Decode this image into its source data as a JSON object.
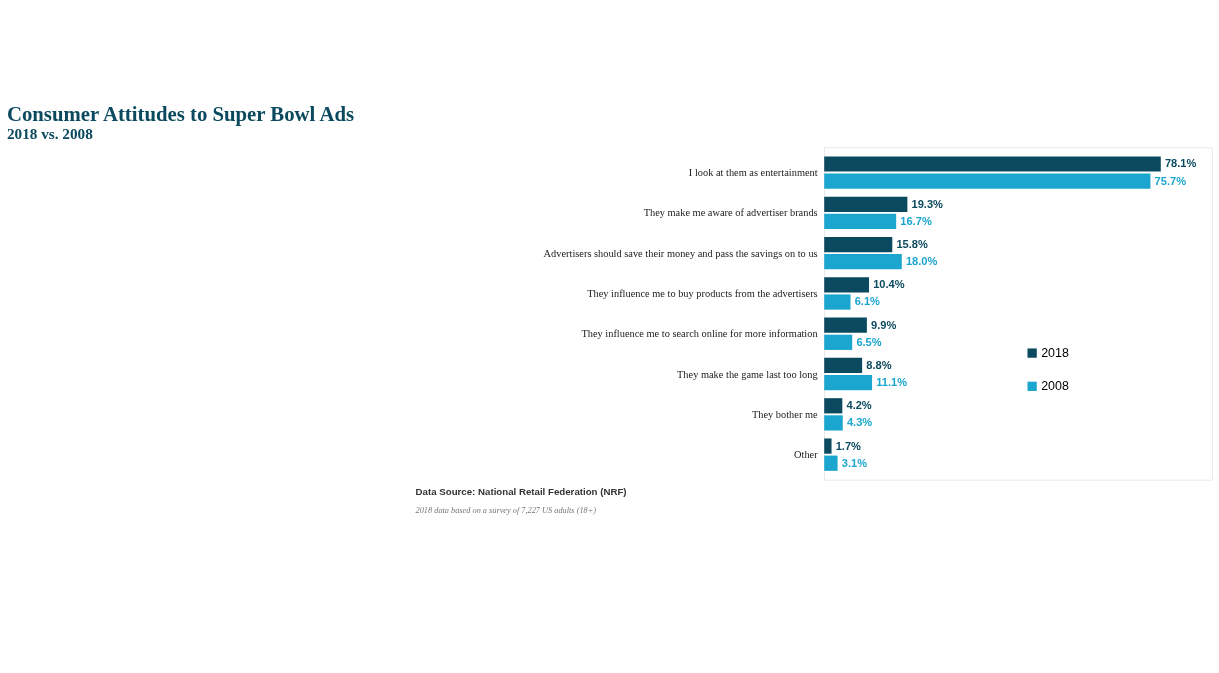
{
  "chart_data": {
    "type": "bar",
    "orientation": "horizontal",
    "title": "Consumer Attitudes to Super Bowl Ads",
    "subtitle": "2018 vs. 2008",
    "categories": [
      "I look at them as entertainment",
      "They make me aware of advertiser brands",
      "Advertisers should save their money and pass the savings on to us",
      "They influence me to buy products from the advertisers",
      "They influence me to search online for more information",
      "They make the game last too long",
      "They bother me",
      "Other"
    ],
    "series": [
      {
        "name": "2018",
        "color": "#0b4a5e",
        "values": [
          78.1,
          19.3,
          15.8,
          10.4,
          9.9,
          8.8,
          4.2,
          1.7
        ],
        "value_labels": [
          "78.1%",
          "19.3%",
          "15.8%",
          "10.4%",
          "9.9%",
          "8.8%",
          "4.2%",
          "1.7%"
        ]
      },
      {
        "name": "2008",
        "color": "#1aa6cf",
        "values": [
          75.7,
          16.7,
          18.0,
          6.1,
          6.5,
          11.1,
          4.3,
          3.1
        ],
        "value_labels": [
          "75.7%",
          "16.7%",
          "18.0%",
          "6.1%",
          "6.5%",
          "11.1%",
          "4.3%",
          "3.1%"
        ]
      }
    ],
    "xlim": [
      0,
      90
    ],
    "tick_labels": "y",
    "grid": false,
    "legend": "right",
    "annotations": [
      "Data Source: National Retail Federation (NRF)",
      "2018 data based on a survey of 7,227 US adults (18+)"
    ]
  }
}
